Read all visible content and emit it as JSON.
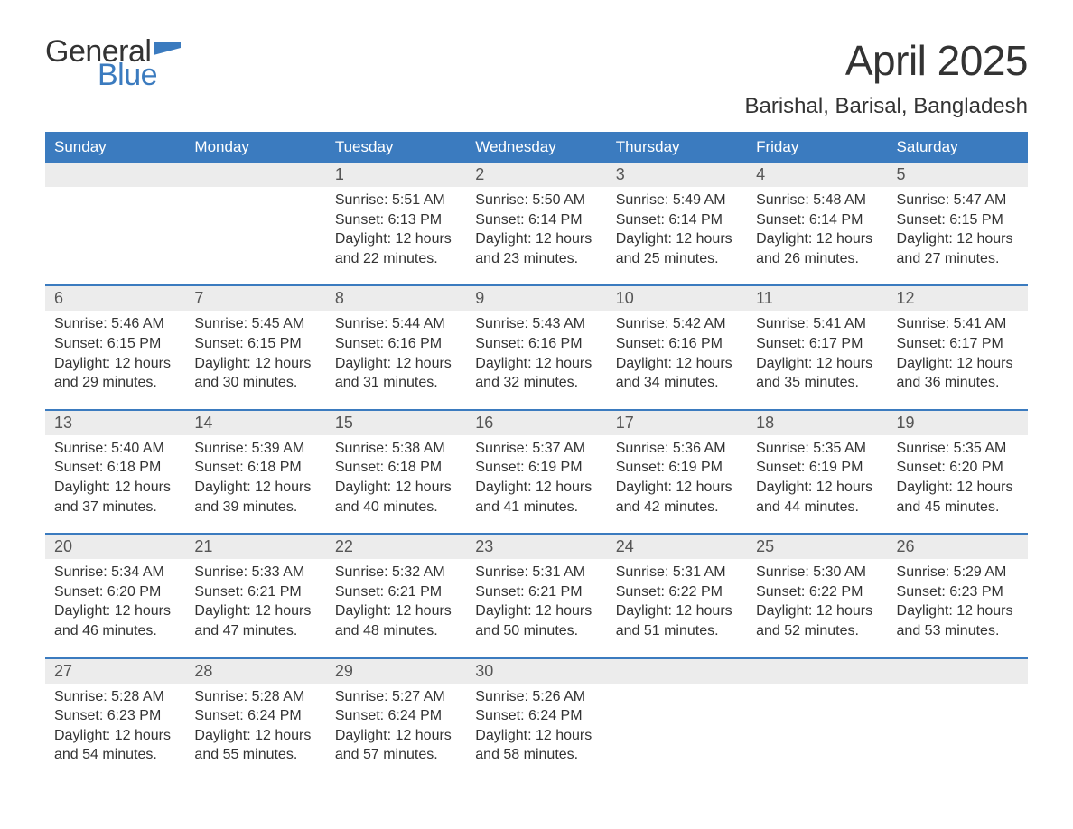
{
  "logo": {
    "text1": "General",
    "text2": "Blue"
  },
  "title": "April 2025",
  "location": "Barishal, Barisal, Bangladesh",
  "colors": {
    "header_bg": "#3b7bbf",
    "header_text": "#ffffff",
    "daynum_bg": "#ececec",
    "border": "#3b7bbf",
    "body_text": "#333333",
    "logo_blue": "#3b7bbf"
  },
  "weekdays": [
    "Sunday",
    "Monday",
    "Tuesday",
    "Wednesday",
    "Thursday",
    "Friday",
    "Saturday"
  ],
  "weeks": [
    [
      null,
      null,
      {
        "n": "1",
        "sunrise": "5:51 AM",
        "sunset": "6:13 PM",
        "daylight": "12 hours and 22 minutes."
      },
      {
        "n": "2",
        "sunrise": "5:50 AM",
        "sunset": "6:14 PM",
        "daylight": "12 hours and 23 minutes."
      },
      {
        "n": "3",
        "sunrise": "5:49 AM",
        "sunset": "6:14 PM",
        "daylight": "12 hours and 25 minutes."
      },
      {
        "n": "4",
        "sunrise": "5:48 AM",
        "sunset": "6:14 PM",
        "daylight": "12 hours and 26 minutes."
      },
      {
        "n": "5",
        "sunrise": "5:47 AM",
        "sunset": "6:15 PM",
        "daylight": "12 hours and 27 minutes."
      }
    ],
    [
      {
        "n": "6",
        "sunrise": "5:46 AM",
        "sunset": "6:15 PM",
        "daylight": "12 hours and 29 minutes."
      },
      {
        "n": "7",
        "sunrise": "5:45 AM",
        "sunset": "6:15 PM",
        "daylight": "12 hours and 30 minutes."
      },
      {
        "n": "8",
        "sunrise": "5:44 AM",
        "sunset": "6:16 PM",
        "daylight": "12 hours and 31 minutes."
      },
      {
        "n": "9",
        "sunrise": "5:43 AM",
        "sunset": "6:16 PM",
        "daylight": "12 hours and 32 minutes."
      },
      {
        "n": "10",
        "sunrise": "5:42 AM",
        "sunset": "6:16 PM",
        "daylight": "12 hours and 34 minutes."
      },
      {
        "n": "11",
        "sunrise": "5:41 AM",
        "sunset": "6:17 PM",
        "daylight": "12 hours and 35 minutes."
      },
      {
        "n": "12",
        "sunrise": "5:41 AM",
        "sunset": "6:17 PM",
        "daylight": "12 hours and 36 minutes."
      }
    ],
    [
      {
        "n": "13",
        "sunrise": "5:40 AM",
        "sunset": "6:18 PM",
        "daylight": "12 hours and 37 minutes."
      },
      {
        "n": "14",
        "sunrise": "5:39 AM",
        "sunset": "6:18 PM",
        "daylight": "12 hours and 39 minutes."
      },
      {
        "n": "15",
        "sunrise": "5:38 AM",
        "sunset": "6:18 PM",
        "daylight": "12 hours and 40 minutes."
      },
      {
        "n": "16",
        "sunrise": "5:37 AM",
        "sunset": "6:19 PM",
        "daylight": "12 hours and 41 minutes."
      },
      {
        "n": "17",
        "sunrise": "5:36 AM",
        "sunset": "6:19 PM",
        "daylight": "12 hours and 42 minutes."
      },
      {
        "n": "18",
        "sunrise": "5:35 AM",
        "sunset": "6:19 PM",
        "daylight": "12 hours and 44 minutes."
      },
      {
        "n": "19",
        "sunrise": "5:35 AM",
        "sunset": "6:20 PM",
        "daylight": "12 hours and 45 minutes."
      }
    ],
    [
      {
        "n": "20",
        "sunrise": "5:34 AM",
        "sunset": "6:20 PM",
        "daylight": "12 hours and 46 minutes."
      },
      {
        "n": "21",
        "sunrise": "5:33 AM",
        "sunset": "6:21 PM",
        "daylight": "12 hours and 47 minutes."
      },
      {
        "n": "22",
        "sunrise": "5:32 AM",
        "sunset": "6:21 PM",
        "daylight": "12 hours and 48 minutes."
      },
      {
        "n": "23",
        "sunrise": "5:31 AM",
        "sunset": "6:21 PM",
        "daylight": "12 hours and 50 minutes."
      },
      {
        "n": "24",
        "sunrise": "5:31 AM",
        "sunset": "6:22 PM",
        "daylight": "12 hours and 51 minutes."
      },
      {
        "n": "25",
        "sunrise": "5:30 AM",
        "sunset": "6:22 PM",
        "daylight": "12 hours and 52 minutes."
      },
      {
        "n": "26",
        "sunrise": "5:29 AM",
        "sunset": "6:23 PM",
        "daylight": "12 hours and 53 minutes."
      }
    ],
    [
      {
        "n": "27",
        "sunrise": "5:28 AM",
        "sunset": "6:23 PM",
        "daylight": "12 hours and 54 minutes."
      },
      {
        "n": "28",
        "sunrise": "5:28 AM",
        "sunset": "6:24 PM",
        "daylight": "12 hours and 55 minutes."
      },
      {
        "n": "29",
        "sunrise": "5:27 AM",
        "sunset": "6:24 PM",
        "daylight": "12 hours and 57 minutes."
      },
      {
        "n": "30",
        "sunrise": "5:26 AM",
        "sunset": "6:24 PM",
        "daylight": "12 hours and 58 minutes."
      },
      null,
      null,
      null
    ]
  ],
  "labels": {
    "sunrise": "Sunrise: ",
    "sunset": "Sunset: ",
    "daylight": "Daylight: "
  }
}
